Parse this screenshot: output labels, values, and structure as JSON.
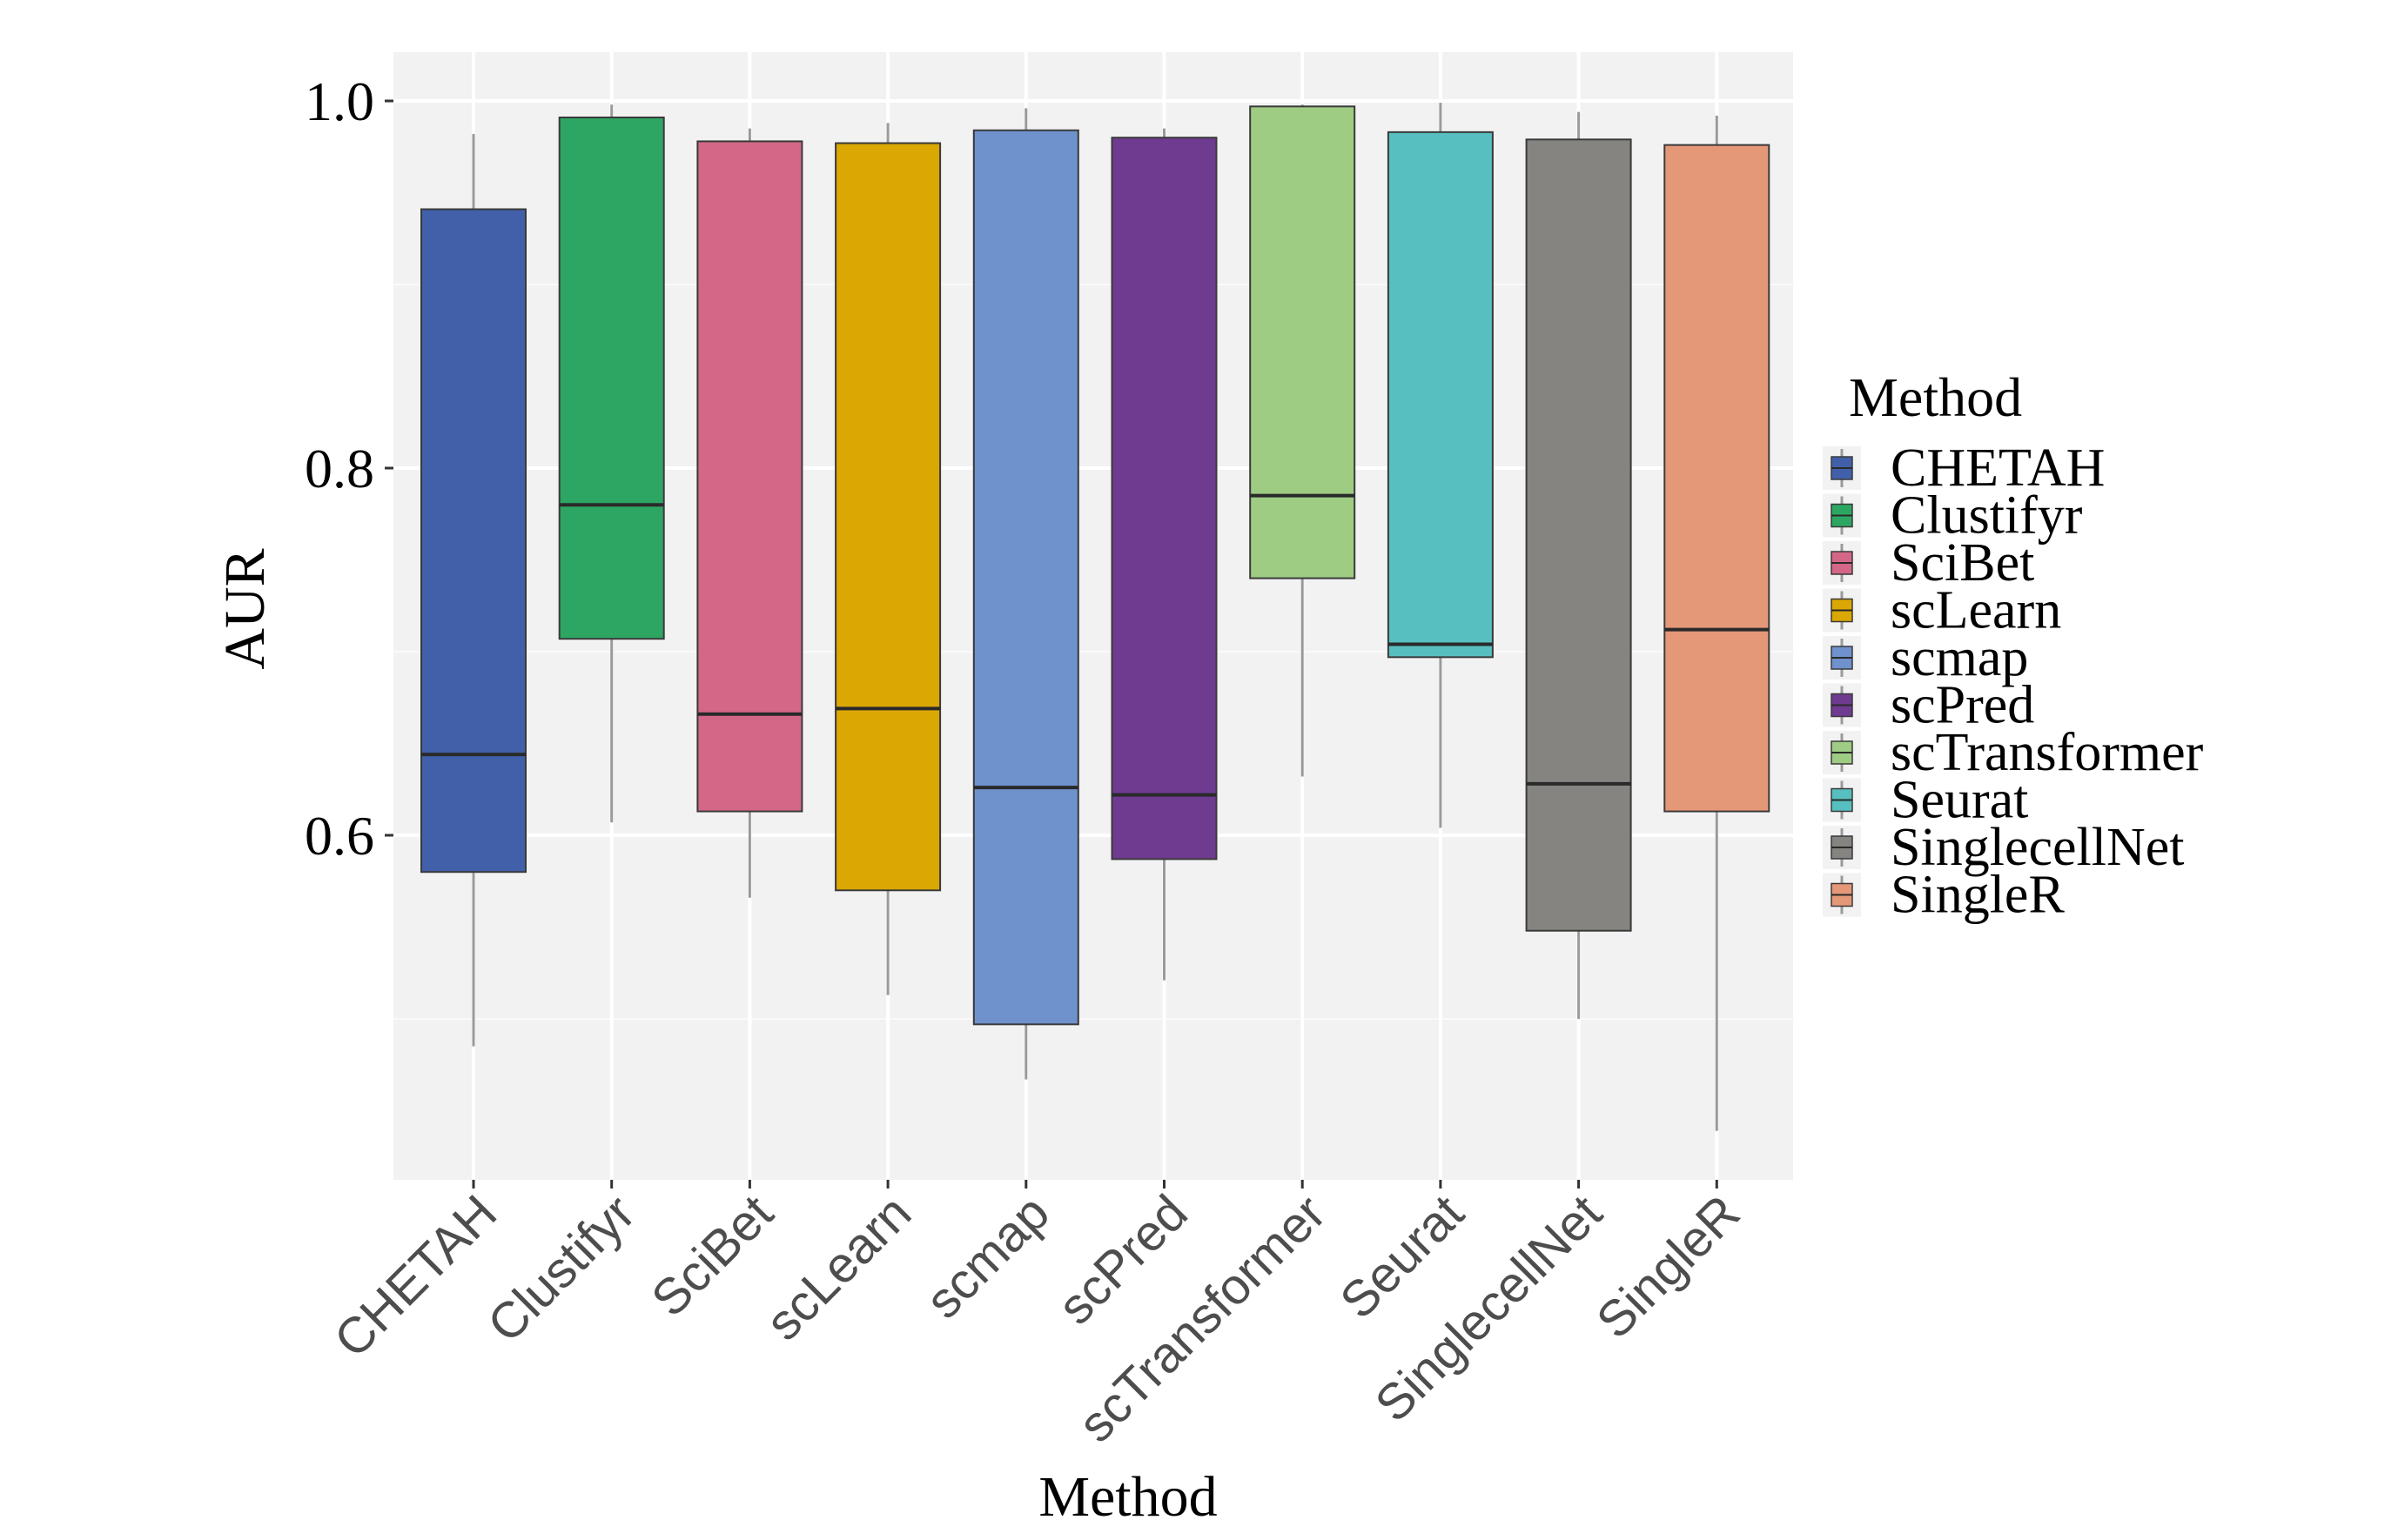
{
  "chart_data": {
    "type": "boxplot",
    "title": "",
    "xlabel": "Method",
    "ylabel": "AUR",
    "ylim": [
      0.42,
      1.027
    ],
    "yticks": [
      0.6,
      0.8,
      1.0
    ],
    "ytick_labels": [
      "0.6",
      "0.8",
      "1.0"
    ],
    "grid": true,
    "legend_title": "Method",
    "legend_position": "right",
    "categories": [
      "CHETAH",
      "Clustifyr",
      "SciBet",
      "scLearn",
      "scmap",
      "scPred",
      "scTransformer",
      "Seurat",
      "SinglecellNet",
      "SingleR"
    ],
    "series": [
      {
        "name": "CHETAH",
        "color": "#4260A9",
        "whisker_low": 0.485,
        "q1": 0.58,
        "median": 0.644,
        "q3": 0.941,
        "whisker_high": 0.982
      },
      {
        "name": "Clustifyr",
        "color": "#2EA663",
        "whisker_low": 0.607,
        "q1": 0.707,
        "median": 0.78,
        "q3": 0.991,
        "whisker_high": 0.998
      },
      {
        "name": "SciBet",
        "color": "#D46787",
        "whisker_low": 0.566,
        "q1": 0.613,
        "median": 0.666,
        "q3": 0.978,
        "whisker_high": 0.985
      },
      {
        "name": "scLearn",
        "color": "#DAA703",
        "whisker_low": 0.513,
        "q1": 0.57,
        "median": 0.669,
        "q3": 0.977,
        "whisker_high": 0.988
      },
      {
        "name": "scmap",
        "color": "#6F91CC",
        "whisker_low": 0.467,
        "q1": 0.497,
        "median": 0.626,
        "q3": 0.984,
        "whisker_high": 0.996
      },
      {
        "name": "scPred",
        "color": "#6F3B91",
        "whisker_low": 0.521,
        "q1": 0.587,
        "median": 0.622,
        "q3": 0.98,
        "whisker_high": 0.985
      },
      {
        "name": "scTransformer",
        "color": "#9ECC83",
        "whisker_low": 0.632,
        "q1": 0.74,
        "median": 0.785,
        "q3": 0.997,
        "whisker_high": 0.998
      },
      {
        "name": "Seurat",
        "color": "#57BFBF",
        "whisker_low": 0.604,
        "q1": 0.697,
        "median": 0.704,
        "q3": 0.983,
        "whisker_high": 0.999
      },
      {
        "name": "SinglecellNet",
        "color": "#858480",
        "whisker_low": 0.5,
        "q1": 0.548,
        "median": 0.628,
        "q3": 0.979,
        "whisker_high": 0.994
      },
      {
        "name": "SingleR",
        "color": "#E59877",
        "whisker_low": 0.439,
        "q1": 0.613,
        "median": 0.712,
        "q3": 0.976,
        "whisker_high": 0.992
      }
    ]
  }
}
